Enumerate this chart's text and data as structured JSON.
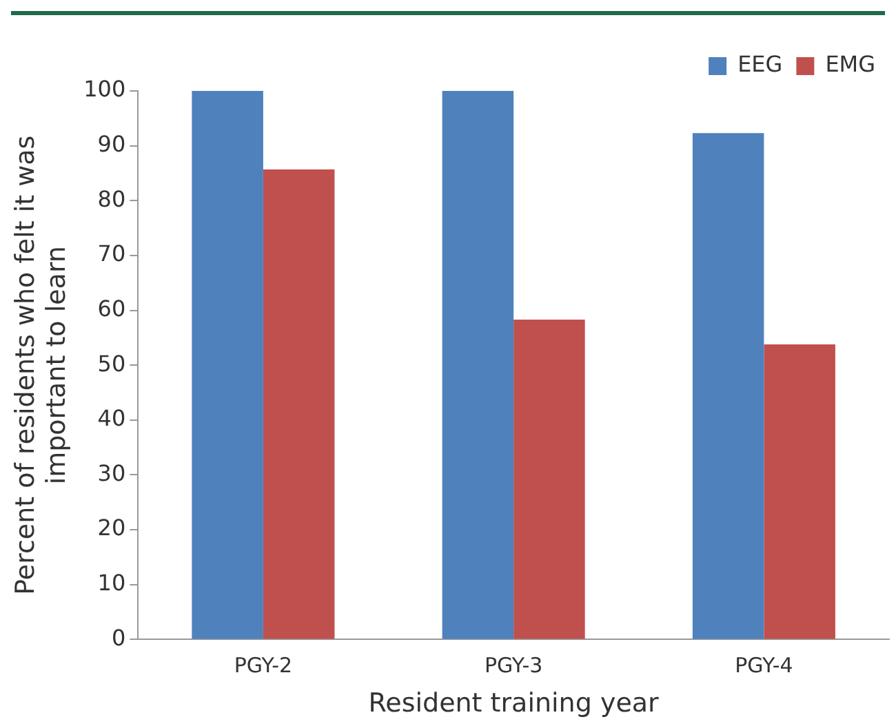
{
  "chart_data": {
    "type": "bar",
    "xlabel": "Resident training year",
    "ylabel": "Percent of residents who felt it was\nimportant to learn",
    "categories": [
      "PGY-2",
      "PGY-3",
      "PGY-4"
    ],
    "series": [
      {
        "name": "EEG",
        "color": "#4f81bd",
        "values": [
          100,
          100,
          92.3
        ]
      },
      {
        "name": "EMG",
        "color": "#c0504d",
        "values": [
          85.7,
          58.3,
          53.8
        ]
      }
    ],
    "ylim": [
      0,
      100
    ],
    "yticks": [
      0,
      10,
      20,
      30,
      40,
      50,
      60,
      70,
      80,
      90,
      100
    ],
    "grid": false,
    "legend": "top right"
  }
}
